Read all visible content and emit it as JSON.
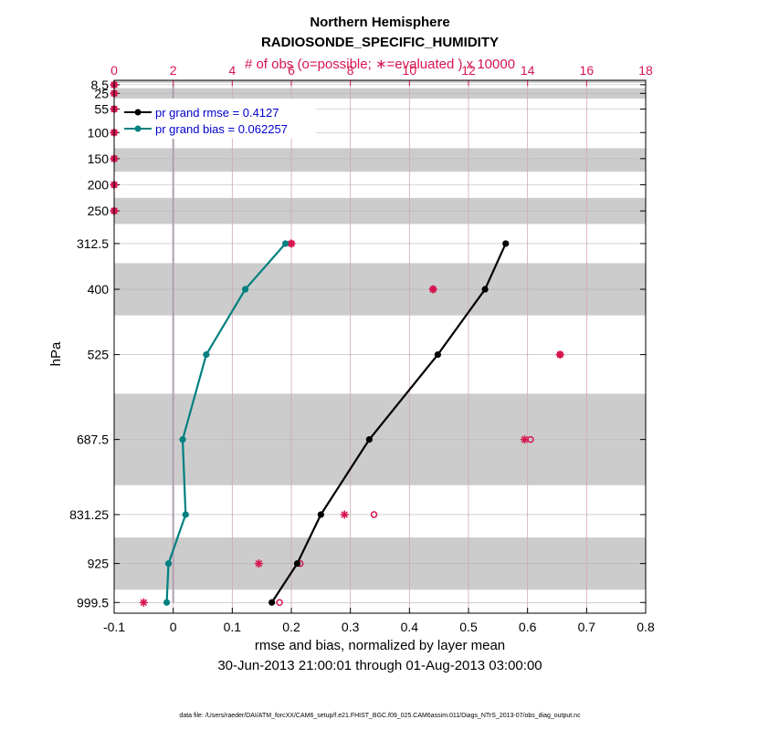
{
  "chart_data": {
    "type": "line",
    "title": "Northern Hemisphere",
    "subtitle": "RADIOSONDE_SPECIFIC_HUMIDITY",
    "top_axis_label": "# of obs (o=possible; ∗=evaluated ) x 10000",
    "xlabel": "rmse and bias, normalized by layer mean",
    "ylabel": "hPa",
    "date_range": "30-Jun-2013 21:00:01 through 01-Aug-2013 03:00:00",
    "footnote": "data file: /Users/raeder/DAI/ATM_forcXX/CAM6_setup/f.e21.FHIST_BGC.f09_025.CAM6assim.011/Diags_NTrS_2013-07/obs_diag_output.nc",
    "xlim": [
      -0.1,
      0.8
    ],
    "x_ticks": [
      -0.1,
      0,
      0.1,
      0.2,
      0.3,
      0.4,
      0.5,
      0.6,
      0.7,
      0.8
    ],
    "x_tick_labels": [
      "-0.1",
      "0",
      "0.1",
      "0.2",
      "0.3",
      "0.4",
      "0.5",
      "0.6",
      "0.7",
      "0.8"
    ],
    "top_xlim": [
      0,
      18
    ],
    "top_ticks": [
      0,
      2,
      4,
      6,
      8,
      10,
      12,
      14,
      16,
      18
    ],
    "top_tick_labels": [
      "0",
      "2",
      "4",
      "6",
      "8",
      "10",
      "12",
      "14",
      "16",
      "18"
    ],
    "levels": [
      8.5,
      25,
      55,
      100,
      150,
      200,
      250,
      312.5,
      400,
      525,
      687.5,
      831.25,
      925,
      999.5
    ],
    "level_labels": [
      "8.5",
      "25",
      "55",
      "100",
      "150",
      "200",
      "250",
      "312.5",
      "400",
      "525",
      "687.5",
      "831.25",
      "925",
      "999.5"
    ],
    "shaded_bands_hPa": [
      [
        0,
        5
      ],
      [
        15,
        35
      ],
      [
        130,
        175
      ],
      [
        225,
        275
      ],
      [
        350,
        450
      ],
      [
        600,
        775
      ],
      [
        875,
        975
      ]
    ],
    "series": [
      {
        "name": "pr grand rmse",
        "legend": "pr grand rmse = 0.4127",
        "color": "#000000",
        "levels": [
          312.5,
          400,
          525,
          687.5,
          831.25,
          925,
          999.5
        ],
        "values": [
          0.563,
          0.528,
          0.448,
          0.332,
          0.25,
          0.21,
          0.167
        ]
      },
      {
        "name": "pr grand bias",
        "legend": "pr grand bias = 0.062257",
        "color": "#008080",
        "levels": [
          312.5,
          400,
          525,
          687.5,
          831.25,
          925,
          999.5
        ],
        "values": [
          0.19,
          0.122,
          0.056,
          0.016,
          0.021,
          -0.008,
          -0.011
        ]
      }
    ],
    "zero_line_levels": [
      8.5,
      999.5
    ],
    "obs_count_x10000": {
      "color": "#d6154f",
      "levels": [
        8.5,
        25,
        55,
        100,
        150,
        200,
        250,
        312.5,
        400,
        525,
        687.5,
        831.25,
        925,
        999.5
      ],
      "possible": [
        0,
        0,
        0,
        0,
        0,
        0,
        0,
        6.0,
        10.8,
        15.1,
        14.1,
        8.8,
        6.3,
        5.6
      ],
      "evaluated": [
        0,
        0,
        0,
        0,
        0,
        0,
        0,
        6.0,
        10.8,
        15.1,
        13.9,
        7.8,
        4.9,
        1.0
      ]
    }
  }
}
